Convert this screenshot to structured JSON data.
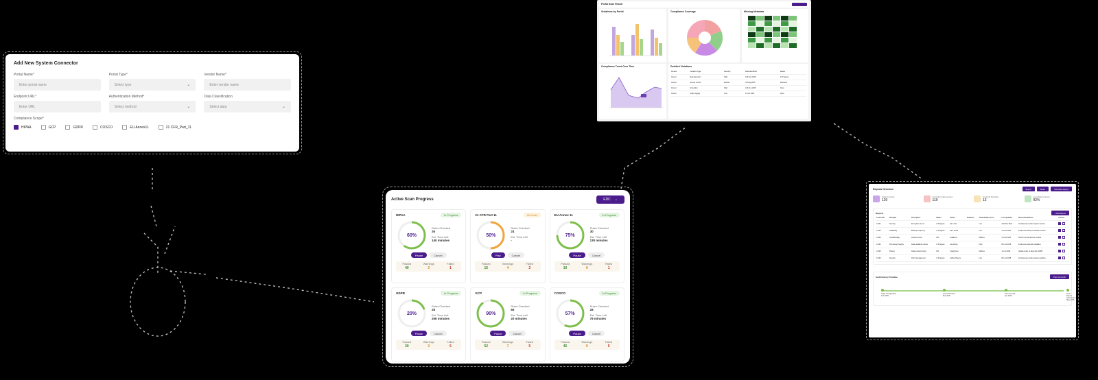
{
  "connector": {
    "title": "Add New System Connector",
    "fields": [
      {
        "label": "Portal Name*",
        "placeholder": "Enter portal name",
        "select": false
      },
      {
        "label": "Portal Type*",
        "placeholder": "Select type",
        "select": true
      },
      {
        "label": "Vendor Name*",
        "placeholder": "Enter vendor name",
        "select": false
      },
      {
        "label": "Endpoint URL*",
        "placeholder": "Enter URL",
        "select": false
      },
      {
        "label": "Authentication Method*",
        "placeholder": "Select method",
        "select": true
      },
      {
        "label": "Data Classification",
        "placeholder": "Select data",
        "select": true
      }
    ],
    "scope_label": "Compliance Scope*",
    "scopes": [
      {
        "label": "HIPAA",
        "checked": true
      },
      {
        "label": "GCP",
        "checked": false
      },
      {
        "label": "GDPR",
        "checked": false
      },
      {
        "label": "COSCO",
        "checked": false
      },
      {
        "label": "EU Annex11",
        "checked": false
      },
      {
        "label": "21 CFR_Part_11",
        "checked": false
      }
    ]
  },
  "scan": {
    "title": "Active Scan Progress",
    "filter": "EDC",
    "cards": [
      {
        "name": "HIPAA",
        "status": "In Progress",
        "paused": false,
        "pct": "60%",
        "progress": 0.6,
        "k1": "Rules Checked",
        "v1": "26",
        "k2": "Est. Time Left",
        "v2": "140 minutes",
        "b1": "Pause",
        "b2": "Cancel",
        "passed": "40",
        "warnings": "3",
        "failed": "1"
      },
      {
        "name": "21 CFR Part 11",
        "status": "On Hold",
        "paused": true,
        "pct": "50%",
        "progress": 0.5,
        "k1": "Rules Checked",
        "v1": "24",
        "k2": "Est. Time Left",
        "v2": "-",
        "b1": "Play",
        "b2": "Cancel",
        "passed": "15",
        "warnings": "4",
        "failed": "2"
      },
      {
        "name": "EU Annex 11",
        "status": "In Progress",
        "paused": false,
        "pct": "75%",
        "progress": 0.75,
        "k1": "Rules Checked",
        "v1": "30",
        "k2": "Est. Time Left",
        "v2": "130 minutes",
        "b1": "Pause",
        "b2": "Cancel",
        "passed": "10",
        "warnings": "0",
        "failed": "1"
      },
      {
        "name": "GDPR",
        "status": "In Progress",
        "paused": false,
        "pct": "20%",
        "progress": 0.2,
        "k1": "Rules Checked",
        "v1": "28",
        "k2": "Est. Time Left",
        "v2": "256 minutes",
        "b1": "Pause",
        "b2": "Cancel",
        "passed": "30",
        "warnings": "3",
        "failed": "6"
      },
      {
        "name": "GCP",
        "status": "In Progress",
        "paused": false,
        "pct": "90%",
        "progress": 0.9,
        "k1": "Rules Checked",
        "v1": "65",
        "k2": "Est. Time Left",
        "v2": "20 minutes",
        "b1": "Pause",
        "b2": "Cancel",
        "passed": "52",
        "warnings": "7",
        "failed": "5"
      },
      {
        "name": "COSCO",
        "status": "In Progress",
        "paused": false,
        "pct": "57%",
        "progress": 0.57,
        "k1": "Rules Checked",
        "v1": "28",
        "k2": "Est. Time Left",
        "v2": "78 minutes",
        "b1": "Pause",
        "b2": "Cancel",
        "passed": "45",
        "warnings": "0",
        "failed": "5"
      }
    ],
    "labels": {
      "passed": "Passed",
      "warnings": "Warnings",
      "failed": "Failed"
    }
  },
  "topdash": {
    "title": "Portal Scan Result",
    "p1": "Violations by Portal",
    "p2": "Compliance Coverage",
    "p3": "Missing Metadata",
    "p4": "Compliance Trend Over Time",
    "p5": "Detailed Violations",
    "cols": [
      "Closed",
      "Violation Type",
      "Severity",
      "Date Identified",
      "Status"
    ],
    "rows": [
      [
        "Closed",
        "Data Retention",
        "High",
        "10th Jan 2025",
        "In Progress"
      ],
      [
        "Closed",
        "Access Control",
        "Medium",
        "3rd Aug 2025",
        "Resolved"
      ],
      [
        "Closed",
        "Encryption",
        "High",
        "12th Jun 2025",
        "Open"
      ],
      [
        "Closed",
        "Audit Logging",
        "Low",
        "1st Jul 2025",
        "Open"
      ]
    ]
  },
  "reports": {
    "title": "Reports Overview",
    "btns": [
      "Export",
      "Share",
      "Schedule Report"
    ],
    "kpis": [
      {
        "label": "Total Controls",
        "value": "130",
        "color": "#c9a6e8"
      },
      {
        "label": "Controls Implemented",
        "value": "110",
        "color": "#f6c2c2"
      },
      {
        "label": "Controls Pending",
        "value": "13",
        "color": "#f7e3b5"
      },
      {
        "label": "Compliance Score",
        "value": "92%",
        "color": "#bfe6c0"
      }
    ],
    "section": "Reports",
    "add": "+ Add Report",
    "cols": [
      "Control ID",
      "Principle",
      "Description",
      "Status",
      "Owner",
      "Evidence",
      "Vulnerability Score",
      "Last Updated",
      "Recommendations",
      "Actions"
    ],
    "rows": [
      [
        "C-001",
        "Security",
        "Encryption at rest",
        "In Progress",
        "Jane Doe",
        "",
        "Low",
        "12th Dec 2024",
        "Continuously monitor system access"
      ],
      [
        "C-002",
        "Availability",
        "Backup Frequency",
        "In Progress",
        "Jane Smith",
        "",
        "Low",
        "1st Oct 2024",
        "Implement backup verification checks"
      ],
      [
        "C-003",
        "Confidentiality",
        "Access control",
        "N/A",
        "Guillaume",
        "",
        "Medium",
        "1st Oct 2024",
        "Perform annual access reviews"
      ],
      [
        "C-004",
        "Processing Integrity",
        "Data validation checks",
        "In Progress",
        "Lisa Wong",
        "",
        "High",
        "8th Jun 2025",
        "Implement automatic validation"
      ],
      [
        "C-005",
        "Privacy",
        "Data retention policy",
        "N/A",
        "Craig Bover",
        "",
        "Medium",
        "1st Jul 2025",
        "Update policy to align with GDPR"
      ],
      [
        "C-006",
        "Security",
        "Patch management",
        "In Progress",
        "Collins Powers",
        "",
        "Low",
        "8th Jun 2025",
        "Continuously monitor system patches"
      ]
    ],
    "timeline_title": "Audit History Timeline",
    "timeline_btn": "Past 12 month",
    "timeline": [
      "Initial Configuration",
      "Internal Review",
      "Internal Audit",
      "Final Report Submission"
    ],
    "timeline_dates": [
      "Feb 2025",
      "Mar 2025",
      "Apr 2025",
      "May 2025"
    ]
  },
  "colors": {
    "primary": "#4b1c8c",
    "green": "#7dbf4a",
    "orange": "#f0a53a"
  }
}
